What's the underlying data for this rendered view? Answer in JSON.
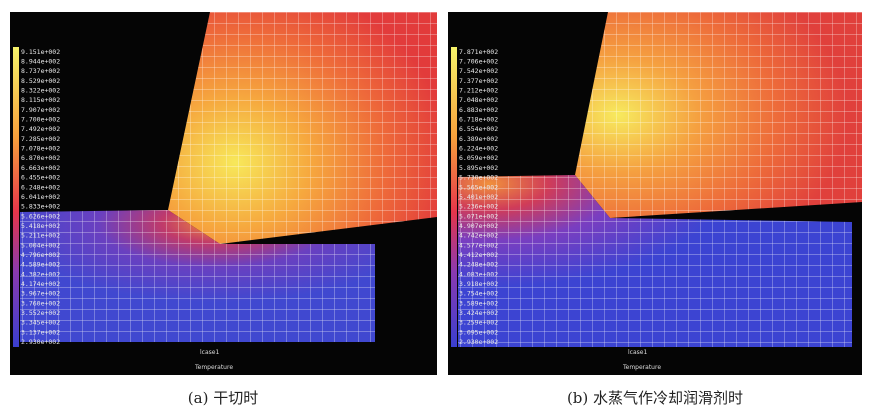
{
  "panels": [
    {
      "legend_labels": [
        "9.151e+002",
        "8.944e+002",
        "8.737e+002",
        "8.529e+002",
        "8.322e+002",
        "8.115e+002",
        "7.907e+002",
        "7.700e+002",
        "7.492e+002",
        "7.285e+002",
        "7.078e+002",
        "6.870e+002",
        "6.663e+002",
        "6.455e+002",
        "6.248e+002",
        "6.041e+002",
        "5.833e+002",
        "5.626e+002",
        "5.418e+002",
        "5.211e+002",
        "5.004e+002",
        "4.796e+002",
        "4.589e+002",
        "4.382e+002",
        "4.174e+002",
        "3.967e+002",
        "3.760e+002",
        "3.552e+002",
        "3.345e+002",
        "3.137e+002",
        "2.930e+002"
      ],
      "case": "lcase1",
      "variable": "Temperature",
      "caption": "(a) 干切时"
    },
    {
      "legend_labels": [
        "7.871e+002",
        "7.706e+002",
        "7.542e+002",
        "7.377e+002",
        "7.212e+002",
        "7.048e+002",
        "6.883e+002",
        "6.718e+002",
        "6.554e+002",
        "6.389e+002",
        "6.224e+002",
        "6.059e+002",
        "5.895e+002",
        "5.730e+002",
        "5.565e+002",
        "5.401e+002",
        "5.236e+002",
        "5.071e+002",
        "4.907e+002",
        "4.742e+002",
        "4.577e+002",
        "4.412e+002",
        "4.248e+002",
        "4.083e+002",
        "3.918e+002",
        "3.754e+002",
        "3.589e+002",
        "3.424e+002",
        "3.259e+002",
        "3.095e+002",
        "2.930e+002"
      ],
      "case": "lcase1",
      "variable": "Temperature",
      "caption": "(b) 水蒸气作冷却润滑剂时"
    }
  ]
}
